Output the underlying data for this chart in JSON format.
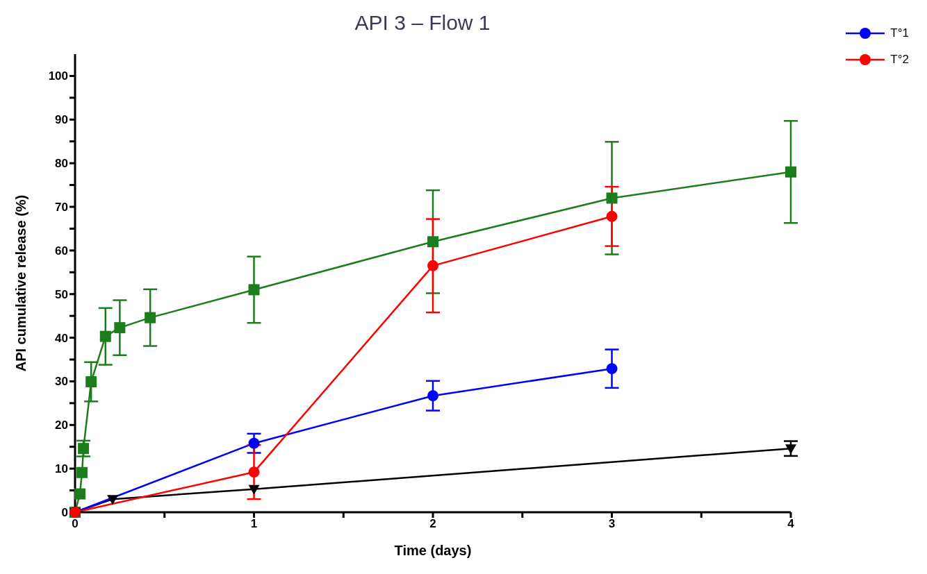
{
  "chart_data": {
    "type": "line",
    "title": "API 3 – Flow 1",
    "xlabel": "Time (days)",
    "ylabel": "API cumulative release (%)",
    "xlim": [
      0,
      4
    ],
    "xticks": [
      0,
      {
        "value": 0.5,
        "label": null
      },
      1,
      {
        "value": 1.5,
        "label": null
      },
      2,
      {
        "value": 2.5,
        "label": null
      },
      3,
      {
        "value": 3.5,
        "label": null
      },
      4
    ],
    "ylim": [
      0,
      105
    ],
    "yticks": [
      0,
      {
        "value": 5,
        "label": null
      },
      10,
      {
        "value": 15,
        "label": null
      },
      20,
      {
        "value": 25,
        "label": null
      },
      30,
      {
        "value": 35,
        "label": null
      },
      40,
      {
        "value": 45,
        "label": null
      },
      50,
      {
        "value": 55,
        "label": null
      },
      60,
      {
        "value": 65,
        "label": null
      },
      70,
      {
        "value": 75,
        "label": null
      },
      80,
      {
        "value": 85,
        "label": null
      },
      90,
      {
        "value": 95,
        "label": null
      },
      100
    ],
    "legend": "top right",
    "line_style": "solid",
    "series": [
      {
        "color": "#1b7d1b",
        "marker": "square",
        "x": [
          0,
          0.027,
          0.039,
          0.047,
          0.09,
          0.17,
          0.25,
          0.42,
          1,
          2,
          3,
          4
        ],
        "values": [
          0,
          4.2,
          9.1,
          14.6,
          29.9,
          40.3,
          42.3,
          44.6,
          51,
          62,
          72,
          78
        ],
        "errors": [
          null,
          null,
          null,
          1.8,
          4.5,
          6.5,
          6.3,
          6.5,
          7.6,
          11.8,
          12.9,
          11.7
        ]
      },
      {
        "color": "#000000",
        "marker": "triangle",
        "x": [
          0,
          0.21,
          1,
          4
        ],
        "values": [
          0,
          3,
          5.3,
          14.6
        ],
        "errors": [
          null,
          null,
          null,
          1.7
        ]
      },
      {
        "name": "T°1",
        "color": "#0000ff",
        "marker": "circle",
        "x": [
          0,
          1,
          2,
          3
        ],
        "values": [
          0,
          15.8,
          26.7,
          32.9
        ],
        "errors": [
          null,
          2.2,
          3.4,
          4.4
        ]
      },
      {
        "name": "T°2",
        "color": "#ff0000",
        "marker": "circle",
        "x": [
          0,
          1,
          2,
          3
        ],
        "values": [
          0,
          9.2,
          56.5,
          67.8
        ],
        "errors": [
          null,
          6.2,
          10.7,
          6.8
        ]
      }
    ]
  }
}
